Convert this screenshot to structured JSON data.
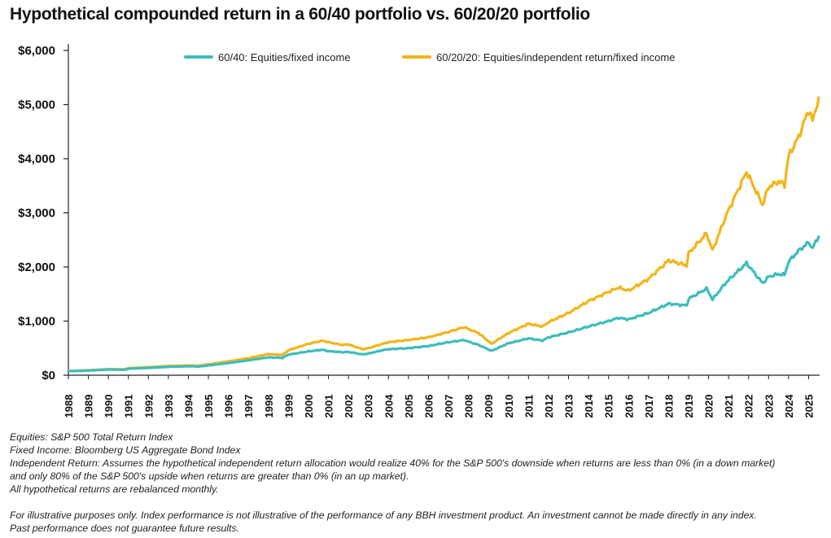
{
  "chart_data": {
    "type": "line",
    "title": "Hypothetical compounded return in a 60/40 portfolio vs. 60/20/20 portfolio",
    "xlabel": "",
    "ylabel": "",
    "xlim": [
      1988,
      2025.55
    ],
    "ylim": [
      0,
      6000
    ],
    "y_ticks": [
      0,
      1000,
      2000,
      3000,
      4000,
      5000,
      6000
    ],
    "y_tick_labels": [
      "$0",
      "$1,000",
      "$2,000",
      "$3,000",
      "$4,000",
      "$5,000",
      "$6,000"
    ],
    "x_tick_labels": [
      "1988",
      "1989",
      "1990",
      "1991",
      "1992",
      "1993",
      "1994",
      "1995",
      "1996",
      "1997",
      "1998",
      "1999",
      "2000",
      "2001",
      "2002",
      "2003",
      "2004",
      "2005",
      "2006",
      "2007",
      "2008",
      "2009",
      "2010",
      "2011",
      "2012",
      "2013",
      "2014",
      "2015",
      "2016",
      "2017",
      "2018",
      "2019",
      "2020",
      "2021",
      "2022",
      "2023",
      "2024",
      "2025"
    ],
    "legend_position": "top",
    "series": [
      {
        "name": "60/40: Equities/fixed income",
        "color": "#3dbdbc",
        "points": [
          [
            1988,
            75
          ],
          [
            1989,
            85
          ],
          [
            1990,
            105
          ],
          [
            1990.8,
            100
          ],
          [
            1991,
            120
          ],
          [
            1992,
            135
          ],
          [
            1993,
            155
          ],
          [
            1994,
            165
          ],
          [
            1994.5,
            160
          ],
          [
            1995,
            180
          ],
          [
            1996,
            225
          ],
          [
            1997,
            275
          ],
          [
            1998,
            330
          ],
          [
            1998.7,
            320
          ],
          [
            1999,
            380
          ],
          [
            2000,
            440
          ],
          [
            2000.7,
            470
          ],
          [
            2001,
            445
          ],
          [
            2001.7,
            425
          ],
          [
            2002,
            430
          ],
          [
            2002.7,
            385
          ],
          [
            2003,
            400
          ],
          [
            2003.8,
            470
          ],
          [
            2004,
            480
          ],
          [
            2005,
            500
          ],
          [
            2006,
            540
          ],
          [
            2007,
            610
          ],
          [
            2007.8,
            650
          ],
          [
            2008,
            620
          ],
          [
            2008.5,
            560
          ],
          [
            2009.15,
            450
          ],
          [
            2010,
            590
          ],
          [
            2011,
            680
          ],
          [
            2011.7,
            640
          ],
          [
            2012,
            700
          ],
          [
            2013,
            790
          ],
          [
            2014,
            900
          ],
          [
            2015,
            1000
          ],
          [
            2015.5,
            1060
          ],
          [
            2016,
            1030
          ],
          [
            2017,
            1150
          ],
          [
            2018,
            1320
          ],
          [
            2018.9,
            1290
          ],
          [
            2019,
            1410
          ],
          [
            2019.9,
            1600
          ],
          [
            2020.2,
            1400
          ],
          [
            2020.8,
            1680
          ],
          [
            2021,
            1760
          ],
          [
            2021.9,
            2070
          ],
          [
            2022.7,
            1700
          ],
          [
            2023,
            1820
          ],
          [
            2023.5,
            1870
          ],
          [
            2023.8,
            1850
          ],
          [
            2024,
            2100
          ],
          [
            2024.5,
            2300
          ],
          [
            2025,
            2450
          ],
          [
            2025.2,
            2350
          ],
          [
            2025.5,
            2560
          ]
        ]
      },
      {
        "name": "60/20/20: Equities/independent return/fixed income",
        "color": "#f2b51b",
        "points": [
          [
            1988,
            78
          ],
          [
            1989,
            92
          ],
          [
            1990,
            112
          ],
          [
            1990.8,
            108
          ],
          [
            1991,
            130
          ],
          [
            1992,
            148
          ],
          [
            1993,
            170
          ],
          [
            1994,
            180
          ],
          [
            1994.5,
            175
          ],
          [
            1995,
            200
          ],
          [
            1996,
            255
          ],
          [
            1997,
            315
          ],
          [
            1998,
            390
          ],
          [
            1998.7,
            375
          ],
          [
            1999,
            460
          ],
          [
            2000,
            580
          ],
          [
            2000.7,
            640
          ],
          [
            2001,
            610
          ],
          [
            2001.7,
            560
          ],
          [
            2002,
            570
          ],
          [
            2002.7,
            480
          ],
          [
            2003,
            500
          ],
          [
            2003.8,
            590
          ],
          [
            2004,
            610
          ],
          [
            2005,
            650
          ],
          [
            2006,
            700
          ],
          [
            2007,
            800
          ],
          [
            2007.8,
            890
          ],
          [
            2008,
            850
          ],
          [
            2008.5,
            780
          ],
          [
            2009.15,
            580
          ],
          [
            2010,
            780
          ],
          [
            2011,
            950
          ],
          [
            2011.7,
            900
          ],
          [
            2012,
            980
          ],
          [
            2013,
            1150
          ],
          [
            2014,
            1370
          ],
          [
            2015,
            1540
          ],
          [
            2015.5,
            1620
          ],
          [
            2016,
            1560
          ],
          [
            2017,
            1780
          ],
          [
            2018,
            2120
          ],
          [
            2018.9,
            2030
          ],
          [
            2019,
            2250
          ],
          [
            2019.9,
            2620
          ],
          [
            2020.2,
            2300
          ],
          [
            2020.8,
            2880
          ],
          [
            2021,
            3050
          ],
          [
            2021.9,
            3760
          ],
          [
            2022.7,
            3150
          ],
          [
            2023,
            3480
          ],
          [
            2023.5,
            3580
          ],
          [
            2023.8,
            3520
          ],
          [
            2024,
            4050
          ],
          [
            2024.5,
            4400
          ],
          [
            2025,
            4900
          ],
          [
            2025.2,
            4700
          ],
          [
            2025.5,
            5130
          ]
        ]
      }
    ]
  },
  "notes": {
    "line1": "Equities: S&P 500 Total Return Index",
    "line2": "Fixed Income: Bloomberg US Aggregate Bond Index",
    "line3": "Independent Return: Assumes the hypothetical independent return allocation would realize 40% for the S&P 500's downside when returns are less than 0% (in a down market)",
    "line4": "and only 80% of the S&P 500's upside when returns are greater than 0% (in an up market).",
    "line5": "All hypothetical returns are rebalanced monthly.",
    "line6": "For illustrative purposes only. Index performance is not illustrative of the performance of any BBH investment product. An investment cannot be made directly in any index.",
    "line7": "Past performance does not guarantee future results."
  }
}
